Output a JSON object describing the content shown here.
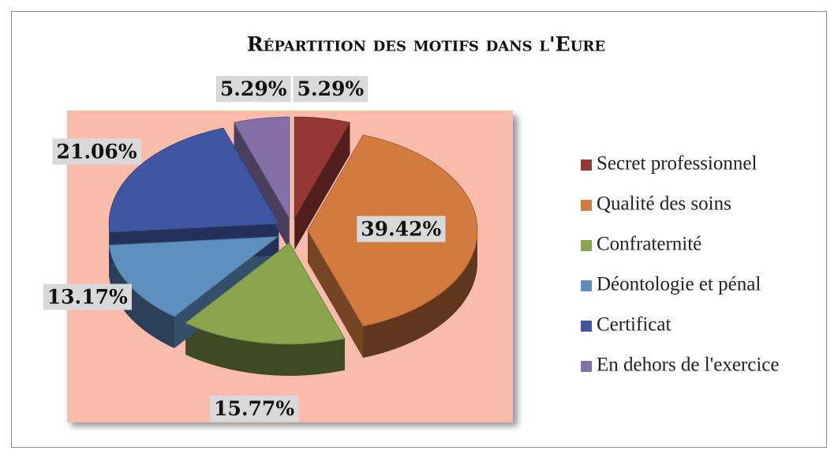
{
  "chart_data": {
    "type": "pie",
    "title": "Répartition des motifs dans l'Eure",
    "categories": [
      "Secret professionnel",
      "Qualité des soins",
      "Confraternité",
      "Déontologie et pénal",
      "Certificat",
      "En dehors de l'exercice"
    ],
    "values": [
      5.29,
      39.42,
      15.77,
      13.17,
      21.06,
      5.29
    ],
    "value_labels": [
      "5.29%",
      "39.42%",
      "15.77%",
      "13.17%",
      "21.06%",
      "5.29%"
    ],
    "colors": [
      "#953735",
      "#d27b3f",
      "#8aa54e",
      "#5f8fbe",
      "#3f57a3",
      "#8470a6"
    ],
    "legend": "right"
  }
}
